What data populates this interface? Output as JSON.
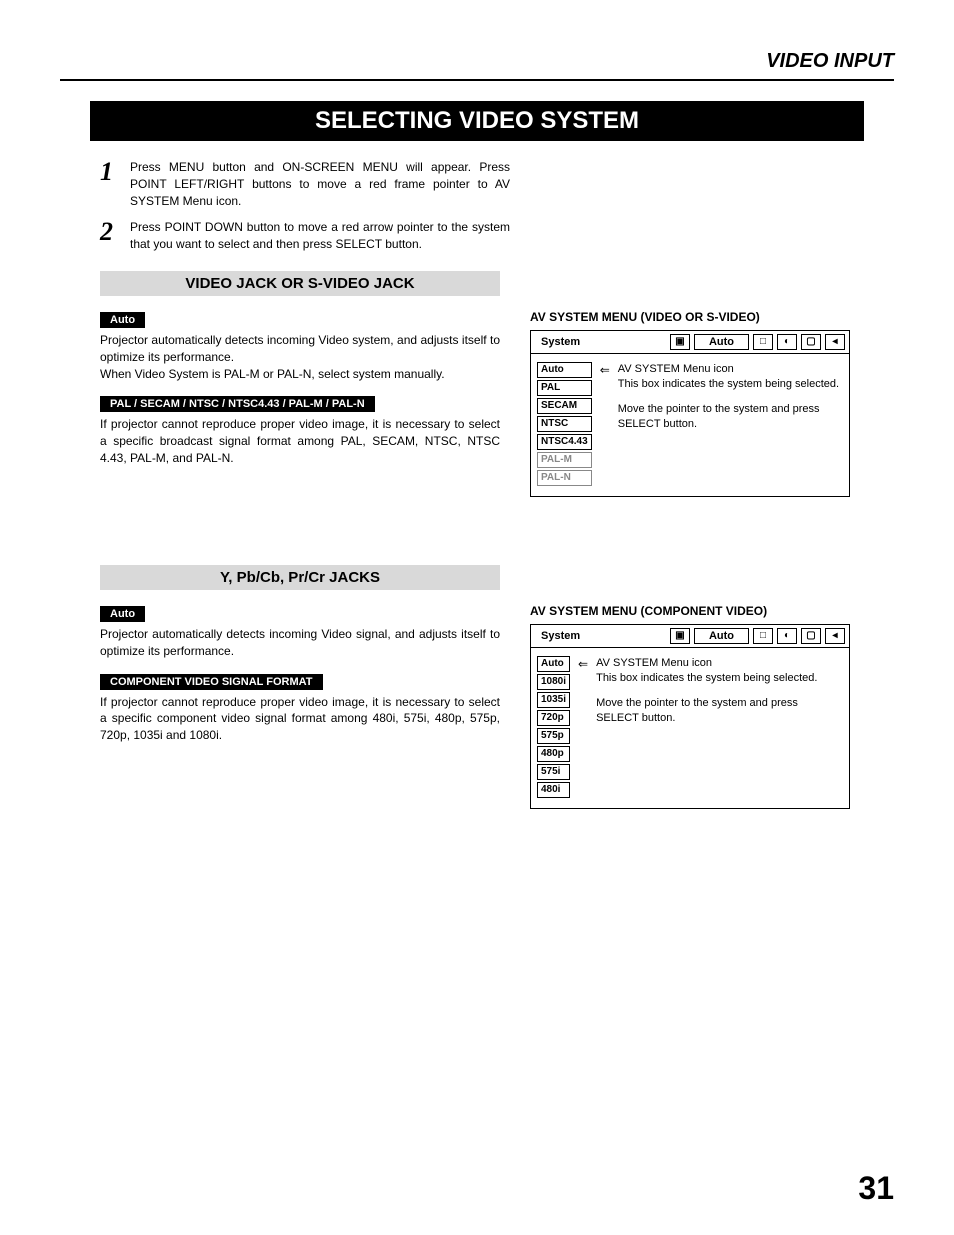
{
  "header": {
    "title": "VIDEO INPUT"
  },
  "section_banner": "SELECTING VIDEO SYSTEM",
  "steps": [
    {
      "num": "1",
      "text": "Press MENU button and ON-SCREEN MENU will appear.  Press POINT LEFT/RIGHT buttons to move a red frame pointer to AV SYSTEM Menu icon."
    },
    {
      "num": "2",
      "text": "Press POINT DOWN button to move a red arrow pointer to the system that you want to select and then press SELECT button."
    }
  ],
  "sub1": {
    "title": "VIDEO JACK OR S-VIDEO JACK",
    "auto_label": "Auto",
    "auto_text1": "Projector automatically detects incoming Video system, and adjusts itself to optimize its performance.",
    "auto_text2": "When Video System is PAL-M or PAL-N, select system manually.",
    "formats_label": "PAL / SECAM / NTSC / NTSC4.43 / PAL-M / PAL-N",
    "formats_text": "If projector cannot reproduce proper video image, it is necessary to select a specific broadcast signal format among PAL, SECAM, NTSC, NTSC 4.43, PAL-M, and PAL-N."
  },
  "menu1": {
    "title": "AV SYSTEM MENU (VIDEO OR S-VIDEO)",
    "bar_label": "System",
    "bar_value": "Auto",
    "options": [
      "Auto",
      "PAL",
      "SECAM",
      "NTSC",
      "NTSC4.43"
    ],
    "options_dim": [
      "PAL-M",
      "PAL-N"
    ],
    "annot1a": "AV SYSTEM Menu icon",
    "annot1b": "This box indicates the system being selected.",
    "annot2": "Move the pointer to the system and press SELECT button."
  },
  "sub2": {
    "title": "Y, Pb/Cb, Pr/Cr JACKS",
    "auto_label": "Auto",
    "auto_text": "Projector automatically detects incoming Video signal, and adjusts itself to optimize its performance.",
    "formats_label": "COMPONENT VIDEO SIGNAL FORMAT",
    "formats_text": "If projector cannot reproduce proper video image, it is necessary to select a specific component video signal format among 480i, 575i, 480p, 575p, 720p, 1035i and 1080i."
  },
  "menu2": {
    "title": "AV SYSTEM MENU (COMPONENT VIDEO)",
    "bar_label": "System",
    "bar_value": "Auto",
    "options": [
      "Auto",
      "1080i",
      "1035i",
      "720p",
      "575p",
      "480p",
      "575i",
      "480i"
    ],
    "annot1a": "AV SYSTEM Menu icon",
    "annot1b": "This box indicates the system being selected.",
    "annot2": "Move the pointer to the system and press SELECT button."
  },
  "page_number": "31",
  "colors": {
    "black": "#000000",
    "white": "#ffffff",
    "gray_banner": "#d9d9d9",
    "dim_text": "#888888"
  }
}
